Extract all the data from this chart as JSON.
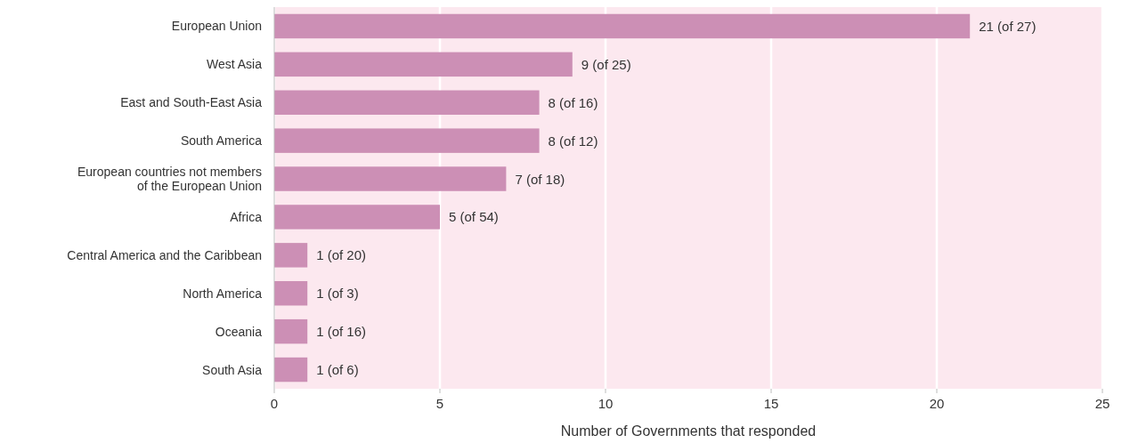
{
  "chart_data": {
    "type": "bar",
    "orientation": "horizontal",
    "xlabel": "Number of Governments that responded",
    "categories": [
      "European Union",
      "West Asia",
      "East and South-East Asia",
      "South America",
      "European countries not members of the European Union",
      "Africa",
      "Central America and the Caribbean",
      "North America",
      "Oceania",
      "South Asia"
    ],
    "values": [
      21,
      9,
      8,
      8,
      7,
      5,
      1,
      1,
      1,
      1
    ],
    "value_labels": [
      "21 (of 27)",
      "9 (of 25)",
      "8 (of 16)",
      "8 (of 12)",
      "7 (of 18)",
      "5 (of 54)",
      "1 (of 20)",
      "1 (of 3)",
      "1 (of 16)",
      "1 (of 6)"
    ],
    "color": "#cc8fb5",
    "xlim": [
      0,
      25
    ],
    "xticks": [
      0,
      5,
      10,
      15,
      20,
      25
    ],
    "grid": "x"
  }
}
